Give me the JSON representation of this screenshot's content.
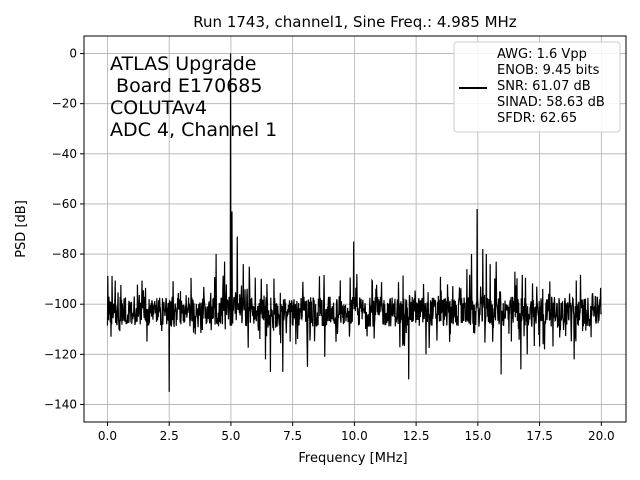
{
  "chart_data": {
    "type": "line",
    "title": "Run 1743, channel1, Sine Freq.: 4.985 MHz",
    "xlabel": "Frequency [MHz]",
    "ylabel": "PSD [dB]",
    "xlim": [
      -0.95,
      21.0
    ],
    "ylim": [
      -147,
      7
    ],
    "xticks": [
      0.0,
      2.5,
      5.0,
      7.5,
      10.0,
      12.5,
      15.0,
      17.5,
      20.0
    ],
    "xtick_labels": [
      "0.0",
      "2.5",
      "5.0",
      "7.5",
      "10.0",
      "12.5",
      "15.0",
      "17.5",
      "20.0"
    ],
    "yticks": [
      0,
      -20,
      -40,
      -60,
      -80,
      -100,
      -120,
      -140
    ],
    "ytick_labels": [
      "0",
      "−20",
      "−40",
      "−60",
      "−80",
      "−100",
      "−120",
      "−140"
    ],
    "grid": true,
    "legend_position": "top-right",
    "annotation_lines": [
      "ATLAS Upgrade",
      " Board E170685",
      "COLUTAv4",
      "ADC 4, Channel 1"
    ],
    "legend_lines": [
      "AWG: 1.6 Vpp",
      "ENOB: 9.45 bits",
      "SNR: 61.07 dB",
      "SINAD: 58.63 dB",
      "SFDR: 62.65"
    ],
    "line_color": "#000000",
    "noise_floor_db": -103,
    "noise_range_db": [
      -118,
      -88
    ],
    "spikes": [
      {
        "x": 0.05,
        "y": -97
      },
      {
        "x": 2.5,
        "y": -140
      },
      {
        "x": 2.5,
        "y": -135
      },
      {
        "x": 4.4,
        "y": -80
      },
      {
        "x": 4.75,
        "y": -83
      },
      {
        "x": 4.985,
        "y": 0
      },
      {
        "x": 5.05,
        "y": -63
      },
      {
        "x": 5.25,
        "y": -73
      },
      {
        "x": 5.5,
        "y": -84
      },
      {
        "x": 5.75,
        "y": -85
      },
      {
        "x": 6.4,
        "y": -122
      },
      {
        "x": 6.6,
        "y": -127
      },
      {
        "x": 7.1,
        "y": -127
      },
      {
        "x": 8.1,
        "y": -125
      },
      {
        "x": 8.8,
        "y": -121
      },
      {
        "x": 9.97,
        "y": -75
      },
      {
        "x": 10.1,
        "y": -88
      },
      {
        "x": 12.2,
        "y": -130
      },
      {
        "x": 12.9,
        "y": -120
      },
      {
        "x": 14.55,
        "y": -86
      },
      {
        "x": 14.75,
        "y": -80
      },
      {
        "x": 14.97,
        "y": -62
      },
      {
        "x": 15.2,
        "y": -78
      },
      {
        "x": 15.35,
        "y": -80
      },
      {
        "x": 15.5,
        "y": -84
      },
      {
        "x": 15.6,
        "y": -115
      },
      {
        "x": 15.75,
        "y": -83
      },
      {
        "x": 15.95,
        "y": -128
      },
      {
        "x": 16.5,
        "y": -87
      },
      {
        "x": 16.75,
        "y": -126
      },
      {
        "x": 17.0,
        "y": -120
      },
      {
        "x": 17.7,
        "y": -118
      },
      {
        "x": 18.9,
        "y": -122
      },
      {
        "x": 19.95,
        "y": -98
      }
    ]
  }
}
